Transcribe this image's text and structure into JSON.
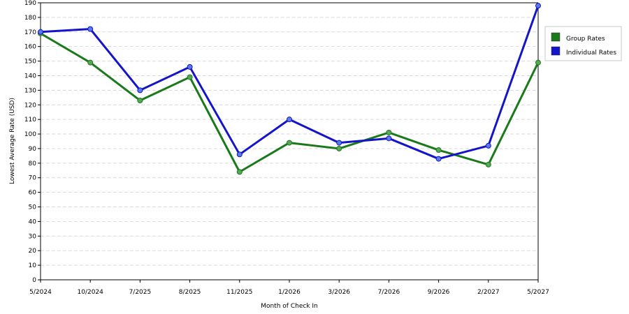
{
  "chart_data": {
    "type": "line",
    "title": "",
    "xlabel": "Month of Check In",
    "ylabel": "Lowest Average Rate (USD)",
    "ylim": [
      0,
      190
    ],
    "ytick_step": 10,
    "grid": true,
    "legend_position": "right",
    "categories": [
      "5/2024",
      "10/2024",
      "7/2025",
      "8/2025",
      "11/2025",
      "1/2026",
      "3/2026",
      "7/2026",
      "9/2026",
      "2/2027",
      "5/2027"
    ],
    "series": [
      {
        "name": "Group Rates",
        "color": "#1a7a1a",
        "marker_color": "#59a659",
        "values": [
          169,
          149,
          123,
          139,
          74,
          94,
          90,
          101,
          89,
          79,
          149
        ]
      },
      {
        "name": "Individual Rates",
        "color": "#1414c8",
        "marker_color": "#5a7ae6",
        "values": [
          170,
          172,
          130,
          146,
          86,
          110,
          94,
          97,
          83,
          92,
          188
        ]
      }
    ]
  }
}
